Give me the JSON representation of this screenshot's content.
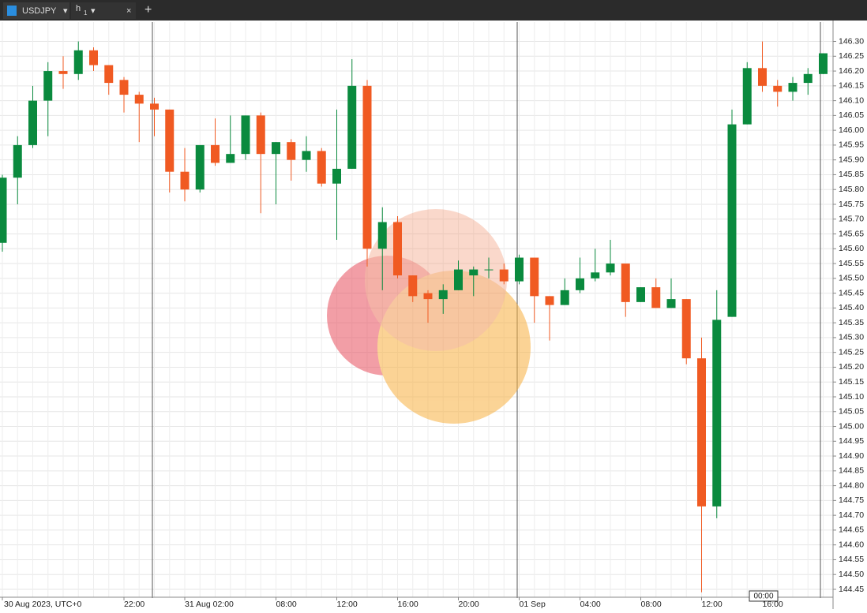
{
  "tabs": {
    "symbol": "USDJPY",
    "timeframe": "h",
    "timeframe_sub": "1"
  },
  "cursor_time": "00:00",
  "chart_data": {
    "type": "candlestick",
    "categories": [
      "30 Aug 2023, UTC+0",
      null,
      null,
      null,
      null,
      null,
      null,
      null,
      "22:00",
      null,
      null,
      null,
      "31 Aug 02:00",
      null,
      null,
      null,
      null,
      null,
      "08:00",
      null,
      null,
      null,
      "12:00",
      null,
      null,
      null,
      "16:00",
      null,
      null,
      null,
      "20:00",
      null,
      null,
      null,
      "01 Sep",
      null,
      null,
      null,
      "04:00",
      null,
      null,
      null,
      "08:00",
      null,
      null,
      null,
      "12:00",
      null,
      null,
      null,
      "16:00",
      null,
      null,
      null,
      null
    ],
    "open": [
      145.62,
      145.84,
      145.95,
      146.1,
      146.2,
      146.19,
      146.27,
      146.22,
      146.17,
      146.12,
      146.09,
      146.07,
      145.86,
      145.8,
      145.95,
      145.89,
      145.92,
      146.05,
      145.92,
      145.96,
      145.9,
      145.93,
      145.82,
      145.87,
      146.15,
      145.6,
      145.69,
      145.51,
      145.45,
      145.43,
      145.46,
      145.51,
      145.53,
      145.53,
      145.49,
      145.57,
      145.44,
      145.41,
      145.46,
      145.5,
      145.52,
      145.55,
      145.42,
      145.47,
      145.4,
      145.43,
      145.23,
      144.73,
      145.37,
      146.02,
      146.21,
      146.15,
      146.13,
      146.16,
      146.19
    ],
    "high": [
      145.85,
      145.98,
      146.15,
      146.23,
      146.25,
      146.3,
      146.28,
      146.22,
      146.18,
      146.13,
      146.11,
      146.07,
      145.94,
      145.95,
      146.04,
      146.05,
      146.05,
      146.06,
      145.96,
      145.97,
      145.98,
      145.94,
      146.07,
      146.24,
      146.17,
      145.74,
      145.71,
      145.51,
      145.46,
      145.48,
      145.56,
      145.54,
      145.57,
      145.55,
      145.58,
      145.57,
      145.44,
      145.5,
      145.57,
      145.6,
      145.63,
      145.55,
      145.47,
      145.5,
      145.5,
      145.43,
      145.3,
      145.46,
      146.07,
      146.23,
      146.3,
      146.17,
      146.18,
      146.21,
      146.26
    ],
    "low": [
      145.59,
      145.75,
      145.94,
      145.98,
      146.14,
      146.17,
      146.2,
      146.12,
      146.06,
      145.96,
      145.98,
      145.79,
      145.76,
      145.79,
      145.88,
      145.89,
      145.9,
      145.72,
      145.75,
      145.83,
      145.86,
      145.81,
      145.63,
      145.87,
      145.54,
      145.46,
      145.5,
      145.42,
      145.35,
      145.38,
      145.46,
      145.44,
      145.5,
      145.48,
      145.48,
      145.35,
      145.29,
      145.41,
      145.45,
      145.49,
      145.51,
      145.37,
      145.42,
      145.4,
      145.4,
      145.21,
      144.44,
      144.69,
      145.37,
      146.02,
      146.13,
      146.08,
      146.1,
      146.12,
      146.19
    ],
    "close": [
      145.84,
      145.95,
      146.1,
      146.2,
      146.19,
      146.27,
      146.22,
      146.16,
      146.12,
      146.09,
      146.07,
      145.86,
      145.8,
      145.95,
      145.89,
      145.92,
      146.05,
      145.92,
      145.96,
      145.9,
      145.93,
      145.82,
      145.87,
      146.15,
      145.6,
      145.69,
      145.51,
      145.44,
      145.43,
      145.46,
      145.53,
      145.53,
      145.53,
      145.49,
      145.57,
      145.44,
      145.41,
      145.46,
      145.5,
      145.52,
      145.55,
      145.42,
      145.47,
      145.4,
      145.43,
      145.23,
      144.73,
      145.36,
      146.02,
      146.21,
      146.15,
      146.13,
      146.16,
      146.19,
      146.26
    ],
    "up_color": "#0a8a3e",
    "down_color": "#f05a22",
    "ylim": [
      144.41,
      146.36
    ],
    "yticks": [
      {
        "value": 146.3,
        "label": "146.30"
      },
      146.25,
      {
        "value": 146.2,
        "label": "146.20"
      },
      146.15,
      {
        "value": 146.1,
        "label": "146.10"
      },
      146.05,
      {
        "value": 146,
        "label": "146.00"
      },
      145.95,
      {
        "value": 145.9,
        "label": "145.90"
      },
      145.85,
      {
        "value": 145.8,
        "label": "145.80"
      },
      145.75,
      {
        "value": 145.7,
        "label": "145.70"
      },
      145.65,
      {
        "value": 145.6,
        "label": "145.60"
      },
      145.55,
      {
        "value": 145.5,
        "label": "145.50"
      },
      145.45,
      {
        "value": 145.4,
        "label": "145.40"
      },
      145.35,
      {
        "value": 145.3,
        "label": "145.30"
      },
      145.25,
      {
        "value": 145.2,
        "label": "145.20"
      },
      145.15,
      {
        "value": 145.1,
        "label": "145.10"
      },
      145.05,
      {
        "value": 145,
        "label": "145.00"
      },
      144.95,
      {
        "value": 144.9,
        "label": "144.90"
      },
      144.85,
      {
        "value": 144.8,
        "label": "144.80"
      },
      144.75,
      {
        "value": 144.7,
        "label": "144.70"
      },
      144.65,
      {
        "value": 144.6,
        "label": "144.60"
      },
      144.55,
      {
        "value": 144.5,
        "label": "144.50"
      },
      144.45
    ],
    "grid": true
  }
}
